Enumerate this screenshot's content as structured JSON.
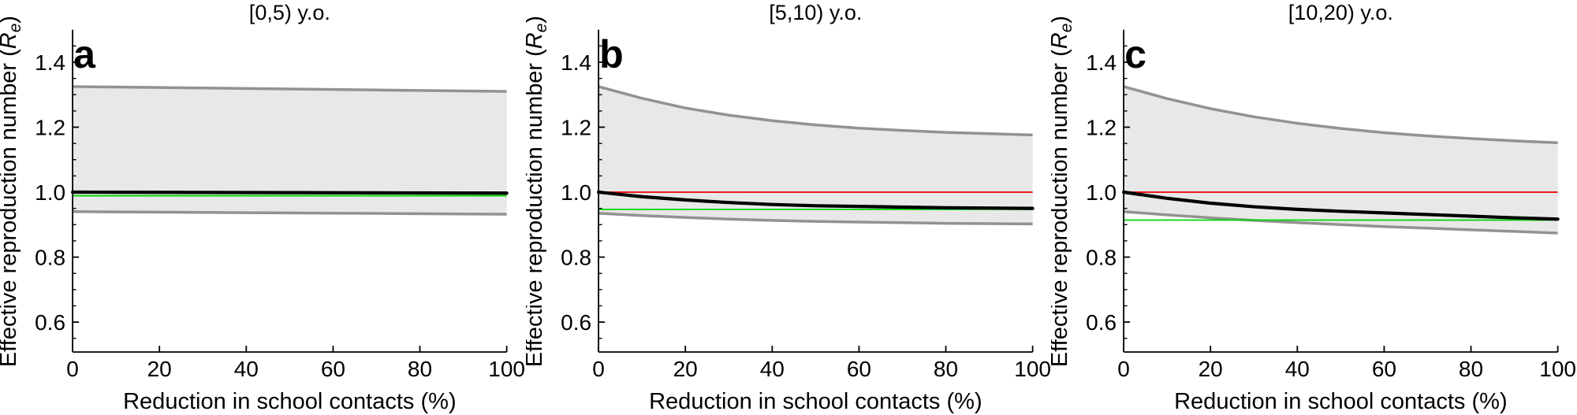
{
  "figure": {
    "xlabel": "Reduction in school contacts (%)",
    "ylabel": {
      "prefix": "Effective reproduction number (",
      "symbol": "R",
      "subscript": "e",
      "suffix": ")"
    },
    "axis": {
      "x_ticks": [
        0,
        20,
        40,
        60,
        80,
        100
      ],
      "y_ticks": [
        0.6,
        0.8,
        1.0,
        1.2,
        1.4
      ],
      "y_minor_tick_step": 0.05,
      "x_range": [
        0,
        100
      ],
      "y_range": [
        0.505,
        1.5
      ],
      "grid": false,
      "legend": "none"
    },
    "colors": {
      "band_fill": "#e8e8e8",
      "band_edge": "#929292",
      "median_line": "#000000",
      "red_reference_line": "#ee0000",
      "green_reference_line": "#00d400",
      "axis": "#000000"
    }
  },
  "chart_data": [
    {
      "type": "line",
      "panel_letter": "a",
      "title": "[0,5) y.o.",
      "x": [
        0,
        10,
        20,
        30,
        40,
        50,
        60,
        70,
        80,
        90,
        100
      ],
      "series": [
        {
          "name": "median_Re",
          "values": [
            1.0,
            0.9997,
            0.9994,
            0.9991,
            0.9988,
            0.9985,
            0.9982,
            0.9979,
            0.9976,
            0.9973,
            0.997
          ]
        },
        {
          "name": "ci_upper",
          "values": [
            1.325,
            1.3235,
            1.322,
            1.3205,
            1.319,
            1.3175,
            1.316,
            1.3145,
            1.313,
            1.3115,
            1.31
          ]
        },
        {
          "name": "ci_lower",
          "values": [
            0.94,
            0.9392,
            0.9384,
            0.9376,
            0.9368,
            0.936,
            0.9352,
            0.9344,
            0.9336,
            0.9328,
            0.932
          ]
        }
      ],
      "red_line_value": 1.0,
      "green_line_value": 0.989
    },
    {
      "type": "line",
      "panel_letter": "b",
      "title": "[5,10) y.o.",
      "x": [
        0,
        10,
        20,
        30,
        40,
        50,
        60,
        70,
        80,
        90,
        100
      ],
      "series": [
        {
          "name": "median_Re",
          "values": [
            1.0,
            0.986,
            0.976,
            0.968,
            0.962,
            0.958,
            0.956,
            0.954,
            0.952,
            0.951,
            0.95
          ]
        },
        {
          "name": "ci_upper",
          "values": [
            1.325,
            1.289,
            1.259,
            1.237,
            1.22,
            1.207,
            1.197,
            1.19,
            1.184,
            1.18,
            1.176
          ]
        },
        {
          "name": "ci_lower",
          "values": [
            0.935,
            0.928,
            0.922,
            0.917,
            0.913,
            0.91,
            0.908,
            0.906,
            0.904,
            0.903,
            0.902
          ]
        }
      ],
      "red_line_value": 1.0,
      "green_line_value": 0.947
    },
    {
      "type": "line",
      "panel_letter": "c",
      "title": "[10,20) y.o.",
      "x": [
        0,
        10,
        20,
        30,
        40,
        50,
        60,
        70,
        80,
        90,
        100
      ],
      "series": [
        {
          "name": "median_Re",
          "values": [
            1.0,
            0.981,
            0.966,
            0.955,
            0.947,
            0.941,
            0.936,
            0.931,
            0.926,
            0.921,
            0.917
          ]
        },
        {
          "name": "ci_upper",
          "values": [
            1.325,
            1.288,
            1.257,
            1.232,
            1.212,
            1.196,
            1.183,
            1.173,
            1.165,
            1.158,
            1.152
          ]
        },
        {
          "name": "ci_lower",
          "values": [
            0.94,
            0.93,
            0.921,
            0.913,
            0.906,
            0.9,
            0.894,
            0.889,
            0.884,
            0.879,
            0.874
          ]
        }
      ],
      "red_line_value": 1.0,
      "green_line_value": 0.914
    }
  ]
}
